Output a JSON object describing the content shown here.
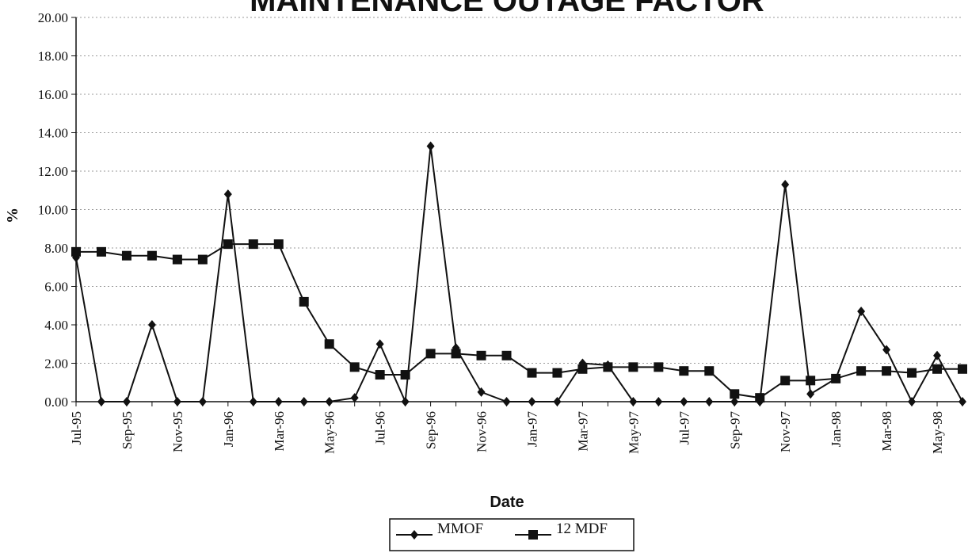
{
  "chart_data": {
    "type": "line",
    "title": "MAINTENANCE OUTAGE FACTOR",
    "x_label": "Date",
    "y_label": "%",
    "categories": [
      "Jul-95",
      null,
      "Sep-95",
      null,
      "Nov-95",
      null,
      "Jan-96",
      null,
      "Mar-96",
      null,
      "May-96",
      null,
      "Jul-96",
      null,
      "Sep-96",
      null,
      "Nov-96",
      null,
      "Jan-97",
      null,
      "Mar-97",
      null,
      "May-97",
      null,
      "Jul-97",
      null,
      "Sep-97",
      null,
      "Nov-97",
      null,
      "Jan-98",
      null,
      "Mar-98",
      null,
      "May-98",
      null
    ],
    "series": [
      {
        "name": "MMOF",
        "color": "#111111",
        "marker": "diamond",
        "values": [
          7.5,
          0,
          0,
          4.0,
          0,
          0,
          10.8,
          0,
          0,
          0,
          0,
          0.2,
          3.0,
          0,
          13.3,
          2.8,
          0.5,
          0,
          0,
          0,
          2.0,
          1.9,
          0,
          0,
          0,
          0,
          0,
          0,
          11.3,
          0.4,
          1.2,
          4.7,
          2.7,
          0,
          2.4,
          0
        ]
      },
      {
        "name": "12 MDF",
        "color": "#111111",
        "marker": "square",
        "values": [
          7.8,
          7.8,
          7.6,
          7.6,
          7.4,
          7.4,
          8.2,
          8.2,
          8.2,
          5.2,
          3.0,
          1.8,
          1.4,
          1.4,
          2.5,
          2.5,
          2.4,
          2.4,
          1.5,
          1.5,
          1.7,
          1.8,
          1.8,
          1.8,
          1.6,
          1.6,
          0.4,
          0.2,
          1.1,
          1.1,
          1.2,
          1.6,
          1.6,
          1.5,
          1.7,
          1.7
        ]
      }
    ],
    "ylim": [
      0,
      20
    ],
    "yticks": [
      {
        "value": 0,
        "label": "0.00"
      },
      {
        "value": 2,
        "label": "2.00"
      },
      {
        "value": 4,
        "label": "4.00"
      },
      {
        "value": 6,
        "label": "6.00"
      },
      {
        "value": 8,
        "label": "8.00"
      },
      {
        "value": 10,
        "label": "10.00"
      },
      {
        "value": 12,
        "label": "12.00"
      },
      {
        "value": 14,
        "label": "14.00"
      },
      {
        "value": 16,
        "label": "16.00"
      },
      {
        "value": 18,
        "label": "18.00"
      },
      {
        "value": 20,
        "label": "20.00"
      }
    ],
    "grid": true,
    "legend": "bottom"
  }
}
